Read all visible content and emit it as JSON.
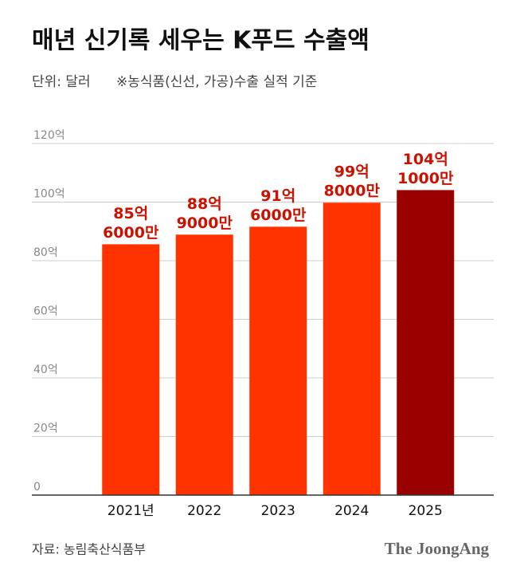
{
  "chart_data": {
    "type": "bar",
    "title": "매년 신기록 세우는 K푸드 수출액",
    "unit_note": "단위: 달러",
    "subtitle": "※농식품(신선, 가공)수출 실적 기준",
    "categories": [
      "2021년",
      "2022",
      "2023",
      "2024",
      "2025"
    ],
    "values": [
      85.6,
      88.9,
      91.6,
      99.8,
      104.1
    ],
    "value_labels": [
      [
        "85억",
        "6000만"
      ],
      [
        "88억",
        "9000만"
      ],
      [
        "91억",
        "6000만"
      ],
      [
        "99억",
        "8000만"
      ],
      [
        "104억",
        "1000만"
      ]
    ],
    "colors": [
      "#ff3300",
      "#ff3300",
      "#ff3300",
      "#ff3300",
      "#990000"
    ],
    "label_color": "#cc1100",
    "ylim": [
      0,
      120
    ],
    "yticks": [
      0,
      {
        "value": 20,
        "label": "20억"
      },
      {
        "value": 40,
        "label": "40억"
      },
      {
        "value": 60,
        "label": "60억"
      },
      {
        "value": 80,
        "label": "80억"
      },
      {
        "value": 100,
        "label": "100억"
      },
      {
        "value": 120,
        "label": "120억"
      }
    ],
    "grid": true,
    "source": "자료: 농림축산식품부",
    "brand": "The JoongAng"
  }
}
